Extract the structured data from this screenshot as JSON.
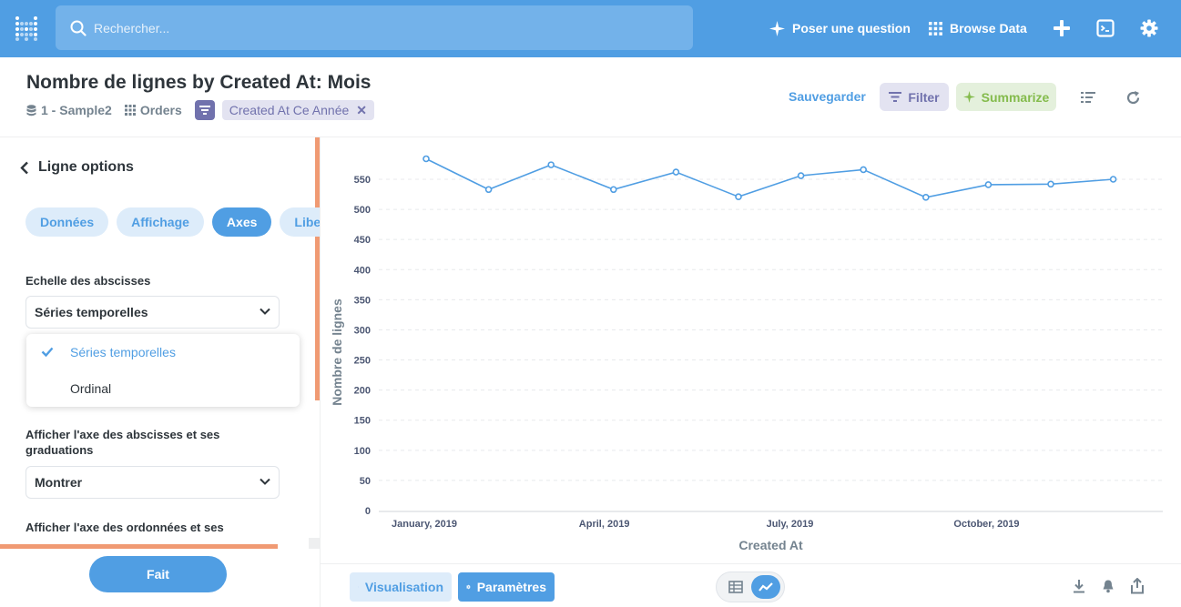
{
  "topbar": {
    "search_placeholder": "Rechercher...",
    "ask_question": "Poser une question",
    "browse_data": "Browse Data",
    "icons": [
      "metabase-logo-icon",
      "search-icon",
      "sparkle-icon",
      "grid-icon",
      "plus-icon",
      "sql-editor-icon",
      "gear-icon"
    ]
  },
  "header": {
    "title": "Nombre de lignes by Created At: Mois",
    "database": "1 - Sample2",
    "table": "Orders",
    "filter_pill": "Created At Ce Année",
    "save_label": "Sauvegarder",
    "filter_label": "Filter",
    "summarize_label": "Summarize"
  },
  "sidebar": {
    "back_title": "Ligne options",
    "tabs": [
      "Données",
      "Affichage",
      "Axes",
      "Libell"
    ],
    "active_tab": "Axes",
    "x_scale_label": "Echelle des abscisses",
    "x_scale_value": "Séries temporelles",
    "x_scale_options": [
      "Séries temporelles",
      "Ordinal"
    ],
    "x_axis_label": "Afficher l'axe des abscisses et ses graduations",
    "x_axis_value": "Montrer",
    "y_axis_label": "Afficher l'axe des ordonnées et ses",
    "done_label": "Fait"
  },
  "footer": {
    "visualization_label": "Visualisation",
    "settings_label": "Paramètres"
  },
  "colors": {
    "brand": "#509ee3",
    "filter": "#7172ad",
    "summarize": "#84bb4c",
    "accent_orange": "#f09a73"
  },
  "chart_data": {
    "type": "line",
    "x": [
      "2019-01",
      "2019-02",
      "2019-03",
      "2019-04",
      "2019-05",
      "2019-06",
      "2019-07",
      "2019-08",
      "2019-09",
      "2019-10",
      "2019-11",
      "2019-12"
    ],
    "x_tick_labels": [
      "January, 2019",
      "April, 2019",
      "July, 2019",
      "October, 2019"
    ],
    "series": [
      {
        "values": [
          584,
          533,
          574,
          533,
          562,
          521,
          556,
          566,
          520,
          541,
          542,
          550
        ]
      }
    ],
    "xlabel": "Created At",
    "ylabel": "Nombre de lignes",
    "ylim": [
      0,
      550
    ],
    "yticks": [
      0,
      50,
      100,
      150,
      200,
      250,
      300,
      350,
      400,
      450,
      500,
      550
    ],
    "grid": true,
    "color": "#509ee3"
  }
}
